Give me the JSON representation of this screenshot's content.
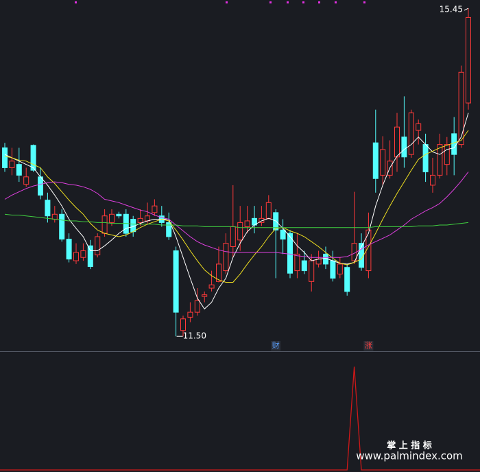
{
  "chart_data": [
    {
      "type": "candlestick",
      "ylim": [
        11.32,
        15.55
      ],
      "up_color": "#ff3a3a",
      "down_color": "#54ffff",
      "ohlc": [
        [
          13.77,
          13.83,
          13.48,
          13.53
        ],
        [
          13.53,
          13.77,
          13.44,
          13.61
        ],
        [
          13.57,
          13.77,
          13.36,
          13.44
        ],
        [
          13.33,
          13.53,
          13.3,
          13.42
        ],
        [
          13.8,
          13.81,
          13.48,
          13.5
        ],
        [
          13.42,
          13.53,
          13.15,
          13.2
        ],
        [
          13.14,
          13.23,
          12.87,
          12.95
        ],
        [
          12.91,
          13.07,
          12.87,
          12.97
        ],
        [
          12.97,
          13.03,
          12.64,
          12.67
        ],
        [
          12.67,
          12.74,
          12.39,
          12.43
        ],
        [
          12.41,
          12.62,
          12.37,
          12.51
        ],
        [
          12.45,
          12.62,
          12.41,
          12.53
        ],
        [
          12.59,
          12.66,
          12.31,
          12.34
        ],
        [
          12.48,
          12.74,
          12.45,
          12.7
        ],
        [
          12.74,
          13.03,
          12.7,
          12.95
        ],
        [
          12.87,
          13.03,
          12.83,
          12.97
        ],
        [
          12.97,
          13.0,
          12.92,
          12.95
        ],
        [
          12.97,
          13.03,
          12.7,
          12.74
        ],
        [
          12.91,
          12.95,
          12.7,
          12.76
        ],
        [
          12.87,
          13.03,
          12.83,
          12.92
        ],
        [
          12.89,
          13.11,
          12.84,
          12.95
        ],
        [
          12.99,
          13.15,
          12.95,
          13.07
        ],
        [
          12.95,
          13.07,
          12.82,
          12.87
        ],
        [
          12.87,
          12.99,
          12.66,
          12.7
        ],
        [
          12.53,
          12.58,
          11.5,
          11.79
        ],
        [
          11.57,
          11.75,
          11.5,
          11.71
        ],
        [
          11.73,
          11.91,
          11.67,
          11.79
        ],
        [
          11.79,
          12.08,
          11.75,
          11.93
        ],
        [
          11.98,
          12.04,
          11.91,
          12.0
        ],
        [
          12.08,
          12.29,
          12.04,
          12.12
        ],
        [
          12.16,
          12.58,
          12.15,
          12.37
        ],
        [
          12.29,
          12.74,
          12.25,
          12.62
        ],
        [
          12.58,
          13.32,
          12.45,
          12.82
        ],
        [
          12.66,
          13.07,
          12.53,
          12.87
        ],
        [
          12.82,
          13.07,
          12.74,
          12.89
        ],
        [
          12.92,
          13.07,
          12.74,
          12.84
        ],
        [
          12.87,
          13.07,
          12.83,
          12.92
        ],
        [
          12.92,
          13.2,
          12.91,
          13.11
        ],
        [
          12.99,
          13.03,
          12.2,
          12.78
        ],
        [
          12.78,
          12.91,
          12.49,
          12.67
        ],
        [
          12.74,
          12.78,
          12.2,
          12.26
        ],
        [
          12.29,
          12.74,
          12.2,
          12.49
        ],
        [
          12.41,
          12.53,
          12.25,
          12.29
        ],
        [
          12.16,
          12.49,
          12.04,
          12.41
        ],
        [
          12.37,
          12.53,
          12.33,
          12.43
        ],
        [
          12.49,
          12.58,
          12.31,
          12.37
        ],
        [
          12.41,
          12.53,
          12.16,
          12.2
        ],
        [
          12.25,
          12.45,
          12.2,
          12.37
        ],
        [
          12.33,
          12.37,
          11.99,
          12.04
        ],
        [
          12.41,
          13.24,
          12.37,
          12.62
        ],
        [
          12.62,
          12.74,
          12.29,
          12.33
        ],
        [
          12.29,
          12.99,
          12.2,
          12.78
        ],
        [
          13.83,
          14.23,
          13.23,
          13.4
        ],
        [
          13.44,
          13.91,
          13.32,
          13.75
        ],
        [
          13.44,
          13.86,
          13.4,
          13.61
        ],
        [
          13.66,
          14.19,
          13.48,
          14.02
        ],
        [
          13.9,
          14.39,
          13.53,
          13.66
        ],
        [
          13.69,
          14.23,
          13.65,
          14.19
        ],
        [
          13.98,
          14.11,
          13.81,
          14.06
        ],
        [
          13.81,
          13.94,
          13.36,
          13.48
        ],
        [
          13.32,
          13.65,
          13.23,
          13.44
        ],
        [
          13.44,
          13.94,
          13.4,
          13.81
        ],
        [
          13.57,
          13.9,
          13.44,
          13.81
        ],
        [
          13.94,
          14.14,
          13.44,
          13.69
        ],
        [
          13.81,
          14.76,
          13.77,
          14.68
        ],
        [
          14.31,
          15.45,
          14.23,
          15.34
        ]
      ],
      "series": [
        {
          "color": "#ffffff",
          "values": [
            13.69,
            13.65,
            13.61,
            13.57,
            13.53,
            13.42,
            13.32,
            13.2,
            13.07,
            12.91,
            12.8,
            12.7,
            12.53,
            12.53,
            12.59,
            12.66,
            12.74,
            12.8,
            12.82,
            12.86,
            12.89,
            12.91,
            12.91,
            12.91,
            12.7,
            12.45,
            12.2,
            11.96,
            11.83,
            11.91,
            12.08,
            12.2,
            12.45,
            12.62,
            12.76,
            12.84,
            12.89,
            12.92,
            12.89,
            12.8,
            12.7,
            12.59,
            12.51,
            12.41,
            12.43,
            12.44,
            12.41,
            12.38,
            12.37,
            12.39,
            12.58,
            12.74,
            13.07,
            13.32,
            13.53,
            13.67,
            13.75,
            13.81,
            13.9,
            13.81,
            13.72,
            13.69,
            13.75,
            13.77,
            13.9,
            14.19
          ]
        },
        {
          "color": "#f0e020",
          "values": [
            13.67,
            13.65,
            13.62,
            13.61,
            13.57,
            13.53,
            13.42,
            13.34,
            13.24,
            13.14,
            13.05,
            12.97,
            12.86,
            12.78,
            12.74,
            12.72,
            12.7,
            12.72,
            12.76,
            12.81,
            12.85,
            12.88,
            12.91,
            12.89,
            12.78,
            12.66,
            12.53,
            12.41,
            12.3,
            12.23,
            12.18,
            12.15,
            12.15,
            12.25,
            12.37,
            12.48,
            12.58,
            12.7,
            12.8,
            12.81,
            12.77,
            12.74,
            12.7,
            12.64,
            12.58,
            12.51,
            12.44,
            12.38,
            12.36,
            12.39,
            12.43,
            12.58,
            12.74,
            12.91,
            13.07,
            13.22,
            13.36,
            13.5,
            13.63,
            13.69,
            13.73,
            13.77,
            13.8,
            13.83,
            13.86,
            13.98
          ]
        },
        {
          "color": "#e040e0",
          "values": [
            13.15,
            13.2,
            13.24,
            13.28,
            13.31,
            13.33,
            13.35,
            13.36,
            13.35,
            13.33,
            13.32,
            13.3,
            13.27,
            13.22,
            13.15,
            13.13,
            13.11,
            13.08,
            13.05,
            13.02,
            13.0,
            12.96,
            12.93,
            12.91,
            12.84,
            12.77,
            12.7,
            12.64,
            12.6,
            12.57,
            12.54,
            12.52,
            12.51,
            12.51,
            12.51,
            12.51,
            12.51,
            12.51,
            12.51,
            12.5,
            12.49,
            12.47,
            12.46,
            12.45,
            12.45,
            12.45,
            12.45,
            12.45,
            12.46,
            12.5,
            12.55,
            12.6,
            12.64,
            12.68,
            12.72,
            12.78,
            12.84,
            12.91,
            12.96,
            13.01,
            13.05,
            13.1,
            13.18,
            13.27,
            13.37,
            13.48
          ]
        },
        {
          "color": "#40d040",
          "values": [
            12.97,
            12.96,
            12.96,
            12.95,
            12.94,
            12.93,
            12.92,
            12.91,
            12.9,
            12.89,
            12.89,
            12.88,
            12.88,
            12.87,
            12.87,
            12.86,
            12.86,
            12.86,
            12.85,
            12.85,
            12.85,
            12.85,
            12.84,
            12.84,
            12.84,
            12.83,
            12.83,
            12.83,
            12.82,
            12.82,
            12.82,
            12.82,
            12.82,
            12.81,
            12.81,
            12.81,
            12.81,
            12.81,
            12.81,
            12.81,
            12.81,
            12.81,
            12.81,
            12.81,
            12.81,
            12.81,
            12.81,
            12.81,
            12.81,
            12.81,
            12.81,
            12.81,
            12.82,
            12.82,
            12.82,
            12.82,
            12.82,
            12.82,
            12.83,
            12.83,
            12.83,
            12.84,
            12.84,
            12.85,
            12.86,
            12.87
          ]
        }
      ],
      "annotations": [
        {
          "label": "15.45",
          "at": 65,
          "value": 15.45
        },
        {
          "label": "11.50",
          "at": 24,
          "value": 11.5
        }
      ],
      "markers": [
        {
          "label": "财",
          "at": 38,
          "color": "#5aa0ff"
        },
        {
          "label": "涨",
          "at": 51,
          "color": "#ff4040"
        }
      ]
    },
    {
      "type": "line",
      "ylim": [
        -0.02,
        1.15
      ],
      "color": "#d01818",
      "values": [
        0,
        0,
        0,
        0,
        0,
        0,
        0,
        0,
        0,
        0,
        0,
        0,
        0,
        0,
        0,
        0,
        0,
        0,
        0,
        0,
        0,
        0,
        0,
        0,
        0,
        0,
        0,
        0,
        0,
        0,
        0,
        0,
        0,
        0,
        0,
        0,
        0,
        0,
        0,
        0,
        0,
        0,
        0,
        0,
        0,
        0,
        0,
        0,
        0,
        1,
        0,
        0,
        0,
        0,
        0,
        0,
        0,
        0,
        0,
        0,
        0,
        0,
        0,
        0,
        0,
        0
      ]
    }
  ],
  "watermark": {
    "title": "掌 上 指 标",
    "url": "www.palmindex.com"
  }
}
